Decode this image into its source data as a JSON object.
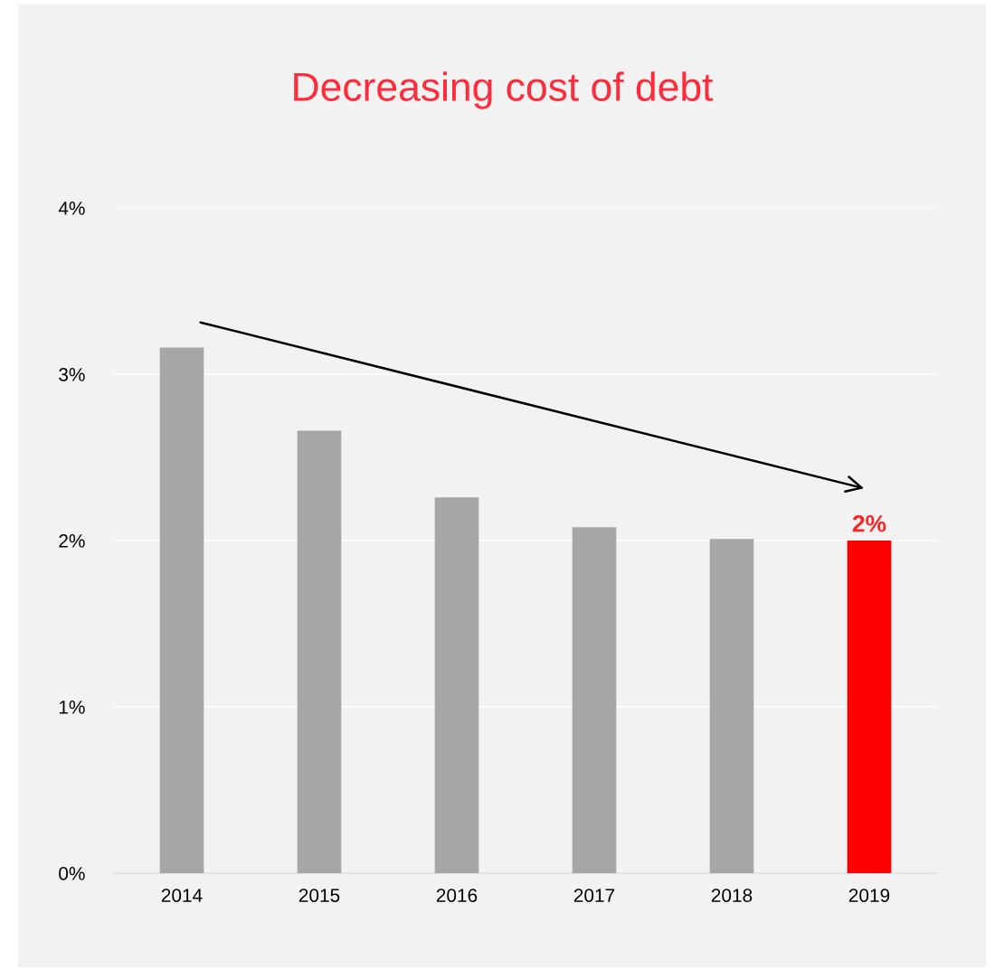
{
  "chart_data": {
    "type": "bar",
    "title": "Decreasing cost of debt",
    "categories": [
      "2014",
      "2015",
      "2016",
      "2017",
      "2018",
      "2019"
    ],
    "values": [
      3.16,
      2.66,
      2.26,
      2.08,
      2.01,
      2.0
    ],
    "colors": [
      "#a6a6a6",
      "#a6a6a6",
      "#a6a6a6",
      "#a6a6a6",
      "#a6a6a6",
      "#ff0000"
    ],
    "value_labels": [
      null,
      null,
      null,
      null,
      null,
      "2%"
    ],
    "ylim": [
      0,
      4
    ],
    "yticks": [
      {
        "value": 0,
        "label": "0%"
      },
      {
        "value": 1,
        "label": "1%"
      },
      {
        "value": 2,
        "label": "2%"
      },
      {
        "value": 3,
        "label": "3%"
      },
      {
        "value": 4,
        "label": "4%"
      }
    ],
    "grid": "y"
  }
}
